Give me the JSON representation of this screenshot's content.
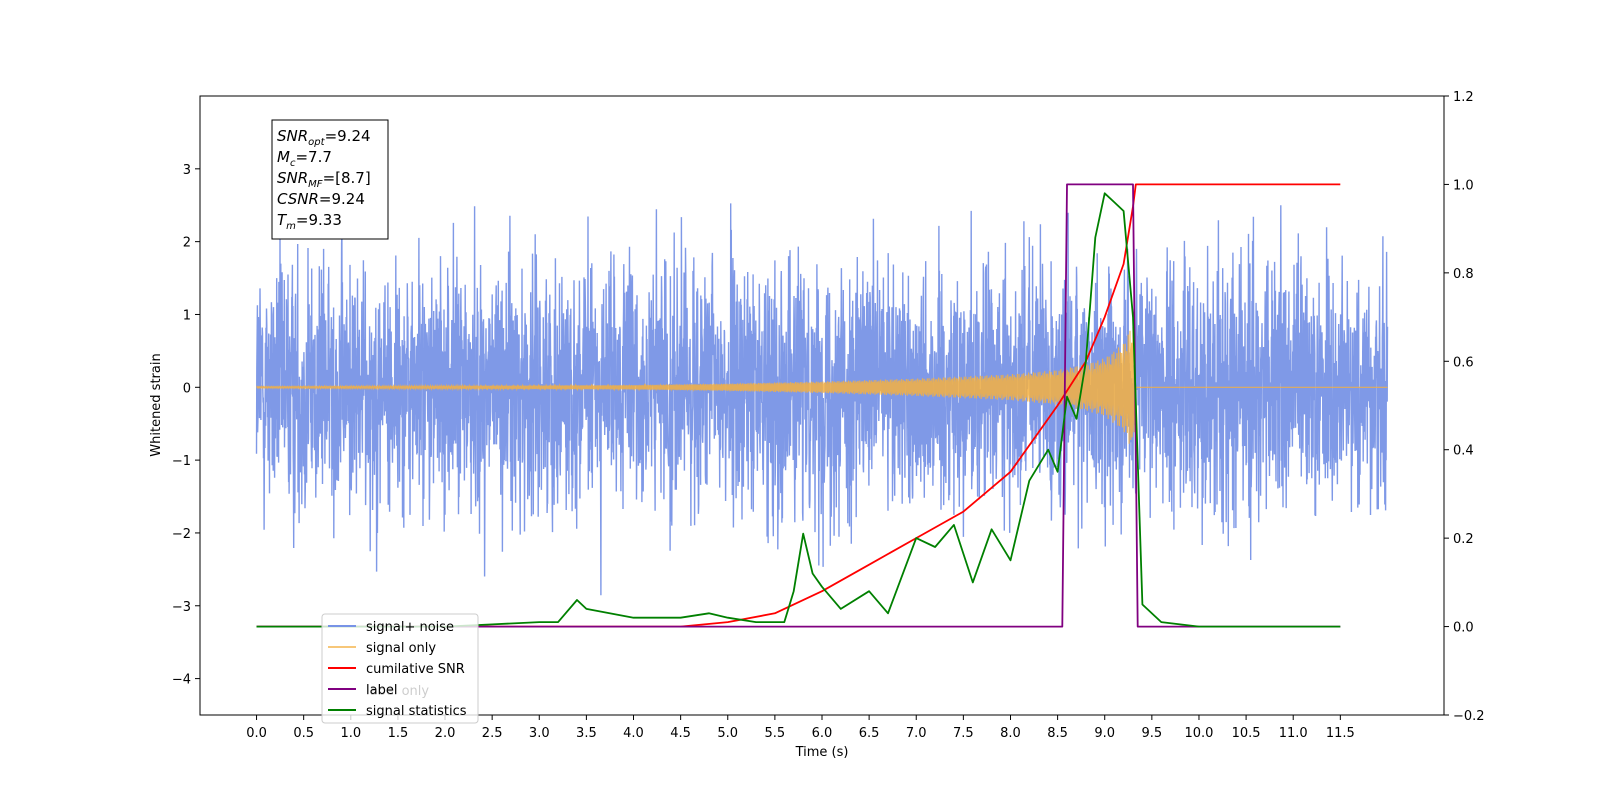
{
  "chart_data": {
    "type": "line",
    "xlabel": "Time (s)",
    "ylabel": "Whitened strain",
    "xlim": [
      -0.6,
      12.6
    ],
    "ylim": [
      -4.5,
      4.0
    ],
    "y2lim": [
      -0.2,
      1.2
    ],
    "x_ticks": [
      0.0,
      0.5,
      1.0,
      1.5,
      2.0,
      2.5,
      3.0,
      3.5,
      4.0,
      4.5,
      5.0,
      5.5,
      6.0,
      6.5,
      7.0,
      7.5,
      8.0,
      8.5,
      9.0,
      9.5,
      10.0,
      10.5,
      11.0,
      11.5
    ],
    "x_tick_labels": [
      "0.0",
      "0.5",
      "1.0",
      "1.5",
      "2.0",
      "2.5",
      "3.0",
      "3.5",
      "4.0",
      "4.5",
      "5.0",
      "5.5",
      "6.0",
      "6.5",
      "7.0",
      "7.5",
      "8.0",
      "8.5",
      "9.0",
      "9.5",
      "10.0",
      "10.5",
      "11.0",
      "11.5"
    ],
    "y_ticks": [
      3,
      2,
      1,
      0,
      -1,
      -2,
      -3,
      -4
    ],
    "y_tick_labels": [
      "3",
      "2",
      "1",
      "0",
      "−1",
      "−2",
      "−3",
      "−4"
    ],
    "y2_ticks": [
      1.2,
      1.0,
      0.8,
      0.6,
      0.4,
      0.2,
      0.0,
      -0.2
    ],
    "y2_tick_labels": [
      "1.2",
      "1.0",
      "0.8",
      "0.6",
      "0.4",
      "0.2",
      "0.0",
      "−0.2"
    ],
    "grid": false,
    "legend_position": "lower-left",
    "annotation": [
      {
        "base": "SNR",
        "sub": "opt",
        "value": "=9.24"
      },
      {
        "base": "M",
        "sub": "c",
        "value": "=7.7"
      },
      {
        "base": "SNR",
        "sub": "MF",
        "value": "=[8.7]"
      },
      {
        "base": "CSNR",
        "sub": "",
        "value": "=9.24"
      },
      {
        "base": "T",
        "sub": "m",
        "value": "=9.33"
      }
    ],
    "series": [
      {
        "name": "signal+ noise",
        "color": "#7893e6",
        "axis": "left",
        "kind": "noise",
        "x_range": [
          0.0,
          12.0
        ],
        "sigma": 1.0
      },
      {
        "name": "signal only",
        "color": "#f5b041",
        "axis": "left",
        "kind": "chirp",
        "envelope_x": [
          0.0,
          4.0,
          5.0,
          6.0,
          7.0,
          8.0,
          8.5,
          8.8,
          9.0,
          9.2,
          9.3,
          9.33,
          9.4
        ],
        "envelope_y": [
          0.01,
          0.03,
          0.05,
          0.08,
          0.12,
          0.18,
          0.24,
          0.32,
          0.4,
          0.6,
          0.9,
          0.0,
          0.0
        ]
      },
      {
        "name": "cumilative SNR",
        "color": "#ff0000",
        "axis": "right",
        "x": [
          0.0,
          4.5,
          5.0,
          5.5,
          6.0,
          6.5,
          7.0,
          7.5,
          8.0,
          8.5,
          8.8,
          9.0,
          9.2,
          9.3,
          9.33,
          9.34,
          11.5
        ],
        "y": [
          0.0,
          0.0,
          0.01,
          0.03,
          0.08,
          0.14,
          0.2,
          0.26,
          0.35,
          0.5,
          0.6,
          0.7,
          0.82,
          0.95,
          1.0,
          1.0,
          1.0
        ]
      },
      {
        "name": "label",
        "color": "#800080",
        "axis": "right",
        "x": [
          0.0,
          8.55,
          8.6,
          9.3,
          9.35,
          11.5
        ],
        "y": [
          0.0,
          0.0,
          1.0,
          1.0,
          0.0,
          0.0
        ]
      },
      {
        "name": "signal statistics",
        "color": "#008000",
        "axis": "right",
        "x": [
          0.0,
          2.0,
          2.5,
          3.0,
          3.2,
          3.4,
          3.5,
          4.0,
          4.5,
          4.8,
          5.0,
          5.3,
          5.6,
          5.7,
          5.8,
          5.9,
          6.0,
          6.2,
          6.5,
          6.7,
          7.0,
          7.2,
          7.4,
          7.6,
          7.8,
          8.0,
          8.2,
          8.4,
          8.5,
          8.6,
          8.7,
          8.8,
          8.9,
          9.0,
          9.1,
          9.2,
          9.3,
          9.4,
          9.6,
          10.0,
          11.5
        ],
        "y": [
          0.0,
          0.0,
          0.005,
          0.01,
          0.01,
          0.06,
          0.04,
          0.02,
          0.02,
          0.03,
          0.02,
          0.01,
          0.01,
          0.08,
          0.21,
          0.12,
          0.09,
          0.04,
          0.08,
          0.03,
          0.2,
          0.18,
          0.23,
          0.1,
          0.22,
          0.15,
          0.33,
          0.4,
          0.35,
          0.52,
          0.47,
          0.6,
          0.88,
          0.98,
          0.96,
          0.94,
          0.7,
          0.05,
          0.01,
          0.0,
          0.0
        ]
      }
    ],
    "legend_entries": [
      "signal+ noise",
      "signal only",
      "cumilative SNR",
      "label",
      "signal statistics"
    ],
    "hidden_legend_entry": "label only"
  }
}
